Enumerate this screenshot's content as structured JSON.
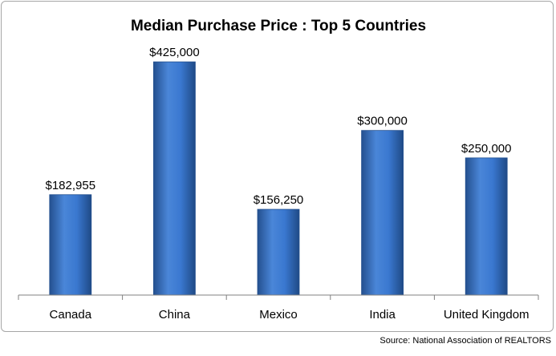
{
  "chart_data": {
    "type": "bar",
    "title": "Median Purchase Price :  Top 5 Countries",
    "categories": [
      "Canada",
      "China",
      "Mexico",
      "India",
      "United Kingdom"
    ],
    "values": [
      182955,
      425000,
      156250,
      300000,
      250000
    ],
    "value_labels": [
      "$182,955",
      "$425,000",
      "$156,250",
      "$300,000",
      "$250,000"
    ],
    "xlabel": "",
    "ylabel": "",
    "ylim": [
      0,
      450000
    ],
    "grid": false,
    "legend": "none",
    "colors": {
      "bar": "#3a78d0",
      "bar_dark": "#24508f",
      "bar_light": "#6d9de2",
      "axis": "#808080"
    }
  },
  "source": "Source: National Association of REALTORS"
}
